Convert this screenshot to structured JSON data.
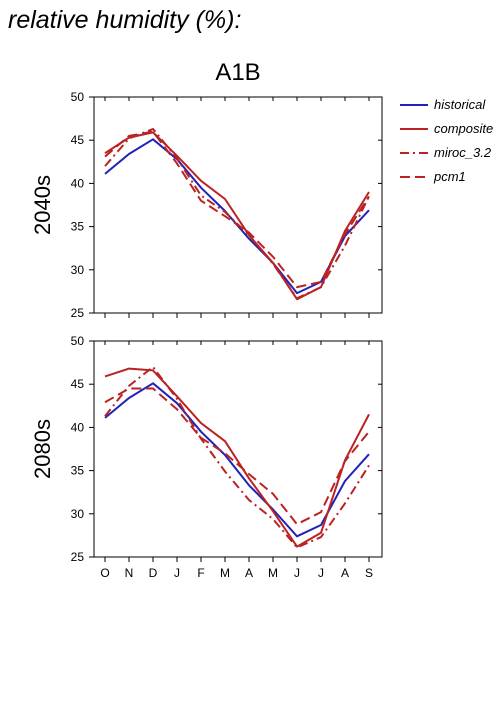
{
  "page_title": "relative humidity (%):",
  "chart_data": {
    "type": "line",
    "title": "A1B",
    "categories": [
      "O",
      "N",
      "D",
      "J",
      "F",
      "M",
      "A",
      "M",
      "J",
      "J",
      "A",
      "S"
    ],
    "ylim": [
      25,
      50
    ],
    "yticks": [
      25,
      30,
      35,
      40,
      45,
      50
    ],
    "grid": false,
    "legend_position": "top-right",
    "legend": [
      {
        "name": "historical",
        "color": "#2222bb",
        "dash": "solid"
      },
      {
        "name": "composite",
        "color": "#bb2222",
        "dash": "solid"
      },
      {
        "name": "miroc_3.2",
        "color": "#bb2222",
        "dash": "dashdot"
      },
      {
        "name": "pcm1",
        "color": "#bb2222",
        "dash": "dashed"
      }
    ],
    "panels": [
      {
        "label": "2040s",
        "series": [
          {
            "name": "historical",
            "values": [
              41.1,
              43.4,
              45.1,
              42.8,
              39.5,
              36.8,
              33.6,
              30.8,
              27.3,
              28.6,
              33.9,
              36.9
            ]
          },
          {
            "name": "composite",
            "values": [
              43.5,
              45.3,
              45.9,
              43.2,
              40.3,
              38.2,
              34.0,
              30.8,
              26.6,
              28.0,
              34.5,
              39.0
            ]
          },
          {
            "name": "miroc_3.2",
            "values": [
              42.0,
              45.2,
              46.3,
              42.9,
              38.6,
              36.7,
              34.0,
              30.7,
              26.7,
              28.0,
              32.8,
              38.5
            ]
          },
          {
            "name": "pcm1",
            "values": [
              43.1,
              45.5,
              46.0,
              42.3,
              38.0,
              36.2,
              34.3,
              31.5,
              28.0,
              28.6,
              34.1,
              38.5
            ]
          }
        ]
      },
      {
        "label": "2080s",
        "series": [
          {
            "name": "historical",
            "values": [
              41.1,
              43.4,
              45.1,
              42.8,
              39.5,
              36.8,
              33.3,
              30.5,
              27.4,
              28.7,
              33.8,
              36.9
            ]
          },
          {
            "name": "composite",
            "values": [
              45.9,
              46.8,
              46.6,
              43.6,
              40.5,
              38.4,
              34.1,
              30.3,
              26.2,
              27.8,
              36.2,
              41.5
            ]
          },
          {
            "name": "miroc_3.2",
            "values": [
              41.3,
              44.8,
              47.0,
              43.3,
              38.7,
              34.9,
              31.6,
              29.4,
              26.1,
              27.3,
              31.2,
              35.6
            ]
          },
          {
            "name": "pcm1",
            "values": [
              42.9,
              44.5,
              44.5,
              42.1,
              38.8,
              37.0,
              34.6,
              32.3,
              28.8,
              30.2,
              36.1,
              39.5
            ]
          }
        ]
      }
    ]
  }
}
